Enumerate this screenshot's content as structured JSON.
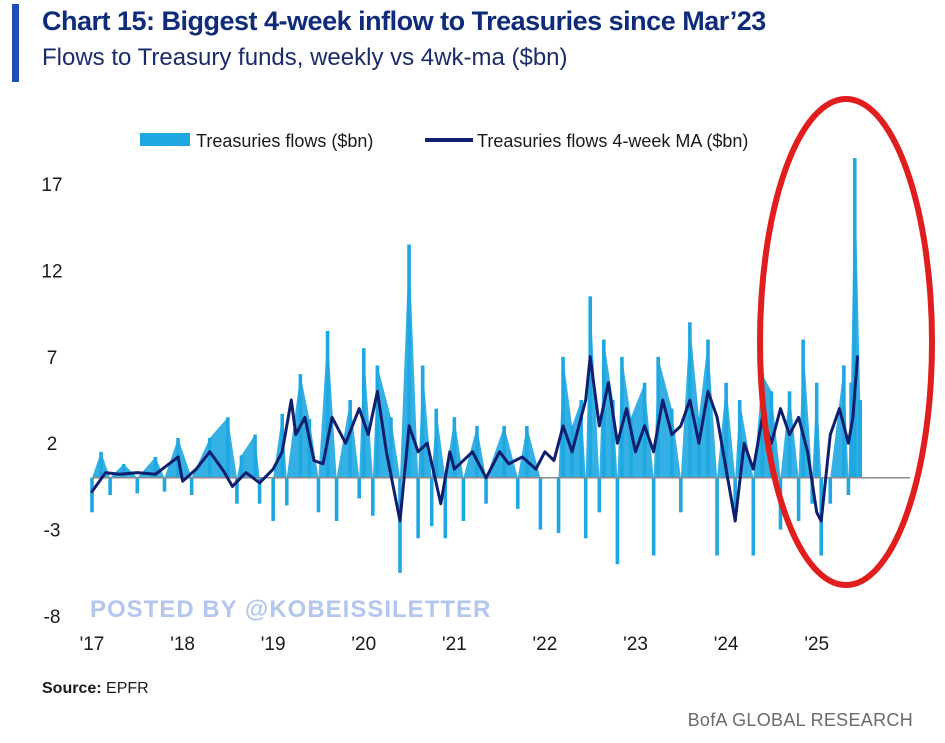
{
  "header": {
    "title": "Chart 15: Biggest 4-week inflow to Treasuries since Mar’23",
    "subtitle": "Flows to Treasury funds, weekly vs 4wk-ma ($bn)"
  },
  "footer": {
    "source_label": "Source:",
    "source_value": " EPFR",
    "brand": "BofA GLOBAL RESEARCH"
  },
  "watermark": "POSTED BY @KOBEISSILETTER",
  "colors": {
    "bars": "#1ea7e1",
    "ma_line": "#0f1f6e",
    "highlight_ellipse": "#e11e1e",
    "title": "#0f2c7a"
  },
  "chart_data": {
    "type": "bar",
    "title": "Chart 15: Biggest 4-week inflow to Treasuries since Mar’23",
    "subtitle": "Flows to Treasury funds, weekly vs 4wk-ma ($bn)",
    "y_ticks": [
      17,
      12,
      7,
      2,
      -3,
      -8
    ],
    "ylim": [
      -8,
      17
    ],
    "x_ticks": [
      "'17",
      "'18",
      "'19",
      "'20",
      "'21",
      "'22",
      "'23",
      "'24",
      "'25"
    ],
    "legend_position": "top",
    "grid": false,
    "annotation": "red ellipse highlighting 2025 data",
    "series": [
      {
        "name": "Treasuries flows ($bn)",
        "kind": "bar",
        "points": [
          [
            2017.0,
            -2.0
          ],
          [
            2017.1,
            1.5
          ],
          [
            2017.2,
            -1.0
          ],
          [
            2017.35,
            0.8
          ],
          [
            2017.5,
            -0.9
          ],
          [
            2017.7,
            1.2
          ],
          [
            2017.8,
            -0.8
          ],
          [
            2017.95,
            2.3
          ],
          [
            2018.1,
            -1.0
          ],
          [
            2018.3,
            2.3
          ],
          [
            2018.5,
            3.5
          ],
          [
            2018.6,
            -1.5
          ],
          [
            2018.65,
            1.3
          ],
          [
            2018.8,
            2.5
          ],
          [
            2018.85,
            -1.5
          ],
          [
            2019.0,
            -2.5
          ],
          [
            2019.1,
            3.7
          ],
          [
            2019.15,
            -1.6
          ],
          [
            2019.3,
            6.0
          ],
          [
            2019.4,
            3.4
          ],
          [
            2019.5,
            -2.0
          ],
          [
            2019.6,
            8.5
          ],
          [
            2019.7,
            -2.5
          ],
          [
            2019.85,
            4.5
          ],
          [
            2019.95,
            -1.2
          ],
          [
            2020.0,
            7.5
          ],
          [
            2020.1,
            -2.2
          ],
          [
            2020.15,
            6.5
          ],
          [
            2020.3,
            3.5
          ],
          [
            2020.4,
            -5.5
          ],
          [
            2020.5,
            13.5
          ],
          [
            2020.6,
            -3.5
          ],
          [
            2020.65,
            6.5
          ],
          [
            2020.75,
            -2.8
          ],
          [
            2020.8,
            4.0
          ],
          [
            2020.9,
            -3.5
          ],
          [
            2021.0,
            3.5
          ],
          [
            2021.1,
            -2.5
          ],
          [
            2021.25,
            3.0
          ],
          [
            2021.35,
            -1.5
          ],
          [
            2021.55,
            3.0
          ],
          [
            2021.7,
            -1.8
          ],
          [
            2021.8,
            3.0
          ],
          [
            2021.95,
            -3.0
          ],
          [
            2022.15,
            -3.2
          ],
          [
            2022.2,
            7.0
          ],
          [
            2022.3,
            3.0
          ],
          [
            2022.4,
            4.5
          ],
          [
            2022.45,
            -3.5
          ],
          [
            2022.5,
            10.5
          ],
          [
            2022.6,
            -2.0
          ],
          [
            2022.65,
            8.0
          ],
          [
            2022.75,
            4.5
          ],
          [
            2022.8,
            -5.0
          ],
          [
            2022.85,
            7.0
          ],
          [
            2022.95,
            3.5
          ],
          [
            2023.1,
            5.5
          ],
          [
            2023.2,
            -4.5
          ],
          [
            2023.25,
            7.0
          ],
          [
            2023.4,
            4.0
          ],
          [
            2023.5,
            -2.0
          ],
          [
            2023.6,
            9.0
          ],
          [
            2023.7,
            3.5
          ],
          [
            2023.8,
            8.0
          ],
          [
            2023.9,
            -4.5
          ],
          [
            2024.0,
            5.5
          ],
          [
            2024.1,
            -2.0
          ],
          [
            2024.15,
            4.5
          ],
          [
            2024.3,
            -4.5
          ],
          [
            2024.4,
            6.0
          ],
          [
            2024.5,
            5.0
          ],
          [
            2024.6,
            -3.0
          ],
          [
            2024.7,
            5.0
          ],
          [
            2024.8,
            -2.5
          ],
          [
            2024.85,
            8.0
          ],
          [
            2024.95,
            -1.5
          ],
          [
            2025.0,
            5.5
          ],
          [
            2025.05,
            -4.5
          ],
          [
            2025.15,
            -1.5
          ],
          [
            2025.3,
            6.5
          ],
          [
            2025.35,
            -1.0
          ],
          [
            2025.38,
            5.5
          ],
          [
            2025.42,
            18.5
          ],
          [
            2025.48,
            4.5
          ]
        ]
      },
      {
        "name": "Treasuries flows 4-week MA ($bn)",
        "kind": "line",
        "points": [
          [
            2017.0,
            -0.8
          ],
          [
            2017.15,
            0.3
          ],
          [
            2017.3,
            0.2
          ],
          [
            2017.5,
            0.3
          ],
          [
            2017.7,
            0.2
          ],
          [
            2017.85,
            0.8
          ],
          [
            2017.95,
            1.2
          ],
          [
            2018.0,
            -0.2
          ],
          [
            2018.15,
            0.5
          ],
          [
            2018.3,
            1.5
          ],
          [
            2018.45,
            0.4
          ],
          [
            2018.55,
            -0.5
          ],
          [
            2018.7,
            0.3
          ],
          [
            2018.85,
            -0.3
          ],
          [
            2019.0,
            0.5
          ],
          [
            2019.1,
            1.5
          ],
          [
            2019.2,
            4.5
          ],
          [
            2019.25,
            2.5
          ],
          [
            2019.35,
            3.5
          ],
          [
            2019.45,
            1.0
          ],
          [
            2019.55,
            0.8
          ],
          [
            2019.65,
            3.5
          ],
          [
            2019.8,
            2.0
          ],
          [
            2019.95,
            4.0
          ],
          [
            2020.05,
            2.5
          ],
          [
            2020.15,
            5.0
          ],
          [
            2020.25,
            1.5
          ],
          [
            2020.4,
            -2.5
          ],
          [
            2020.5,
            3.0
          ],
          [
            2020.6,
            1.5
          ],
          [
            2020.7,
            2.0
          ],
          [
            2020.85,
            -1.5
          ],
          [
            2020.95,
            1.5
          ],
          [
            2021.0,
            0.5
          ],
          [
            2021.2,
            1.5
          ],
          [
            2021.35,
            0.0
          ],
          [
            2021.5,
            1.5
          ],
          [
            2021.6,
            0.8
          ],
          [
            2021.75,
            1.2
          ],
          [
            2021.9,
            0.5
          ],
          [
            2022.0,
            1.5
          ],
          [
            2022.1,
            1.0
          ],
          [
            2022.2,
            3.0
          ],
          [
            2022.3,
            1.5
          ],
          [
            2022.45,
            4.5
          ],
          [
            2022.5,
            7.0
          ],
          [
            2022.6,
            3.0
          ],
          [
            2022.7,
            5.5
          ],
          [
            2022.8,
            2.0
          ],
          [
            2022.9,
            4.0
          ],
          [
            2023.0,
            1.5
          ],
          [
            2023.1,
            3.0
          ],
          [
            2023.2,
            1.5
          ],
          [
            2023.3,
            4.5
          ],
          [
            2023.4,
            2.5
          ],
          [
            2023.5,
            3.0
          ],
          [
            2023.6,
            4.5
          ],
          [
            2023.7,
            2.0
          ],
          [
            2023.8,
            5.0
          ],
          [
            2023.9,
            3.5
          ],
          [
            2024.0,
            0.5
          ],
          [
            2024.1,
            -2.5
          ],
          [
            2024.2,
            2.0
          ],
          [
            2024.3,
            0.5
          ],
          [
            2024.4,
            3.5
          ],
          [
            2024.5,
            2.0
          ],
          [
            2024.6,
            4.0
          ],
          [
            2024.7,
            2.5
          ],
          [
            2024.8,
            3.5
          ],
          [
            2024.9,
            1.5
          ],
          [
            2025.0,
            -2.0
          ],
          [
            2025.05,
            -2.5
          ],
          [
            2025.15,
            2.5
          ],
          [
            2025.25,
            4.0
          ],
          [
            2025.35,
            2.0
          ],
          [
            2025.4,
            3.5
          ],
          [
            2025.45,
            7.0
          ]
        ]
      }
    ]
  }
}
